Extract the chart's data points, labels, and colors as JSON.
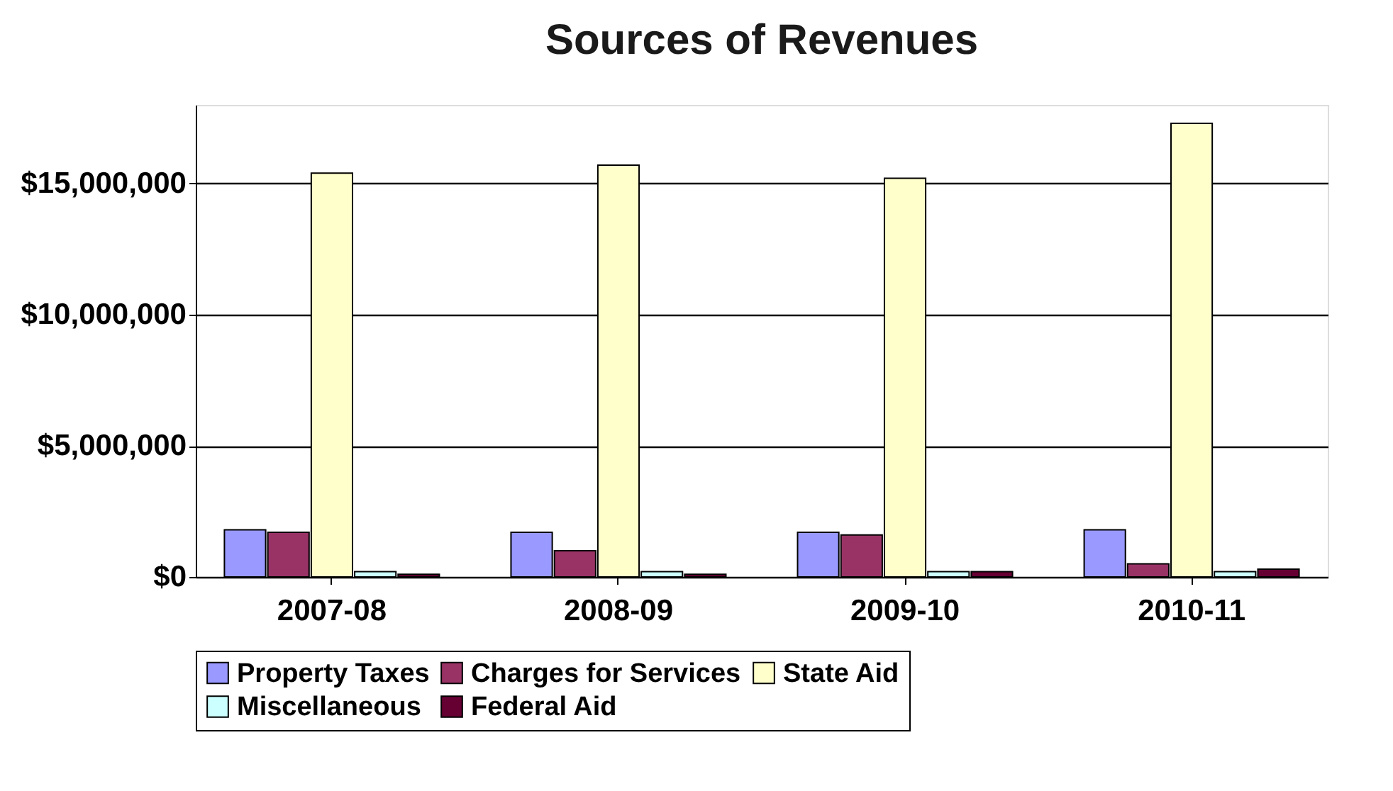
{
  "chart_data": {
    "type": "bar",
    "title": "Sources of Revenues",
    "categories": [
      "2007-08",
      "2008-09",
      "2009-10",
      "2010-11"
    ],
    "series": [
      {
        "name": "Property Taxes",
        "color": "#9999ff",
        "values": [
          1800000,
          1700000,
          1700000,
          1800000
        ]
      },
      {
        "name": "Charges for Services",
        "color": "#993366",
        "values": [
          1700000,
          1000000,
          1600000,
          500000
        ]
      },
      {
        "name": "State Aid",
        "color": "#ffffcc",
        "values": [
          15400000,
          15700000,
          15200000,
          17300000
        ]
      },
      {
        "name": "Miscellaneous",
        "color": "#ccffff",
        "values": [
          200000,
          200000,
          200000,
          200000
        ]
      },
      {
        "name": "Federal Aid",
        "color": "#660033",
        "values": [
          100000,
          100000,
          200000,
          300000
        ]
      }
    ],
    "ylim": [
      0,
      18000000
    ],
    "yticks": [
      {
        "value": 0,
        "label": "$0"
      },
      {
        "value": 5000000,
        "label": "$5,000,000"
      },
      {
        "value": 10000000,
        "label": "$10,000,000"
      },
      {
        "value": 15000000,
        "label": "$15,000,000"
      }
    ],
    "grid": "y",
    "legend": "bottom"
  }
}
